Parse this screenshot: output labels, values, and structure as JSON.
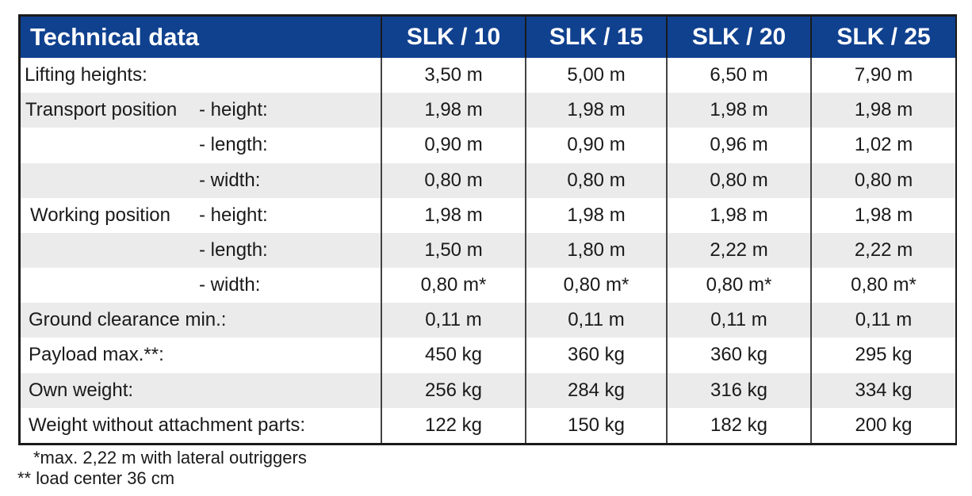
{
  "table": {
    "title": "Technical data",
    "models": [
      "SLK / 10",
      "SLK / 15",
      "SLK / 20",
      "SLK / 25"
    ],
    "rows": [
      {
        "group": "",
        "label": "Lifting heights:",
        "values": [
          "3,50 m",
          "5,00 m",
          "6,50 m",
          "7,90 m"
        ]
      },
      {
        "group": "Transport position",
        "label": "- height:",
        "values": [
          "1,98 m",
          "1,98 m",
          "1,98 m",
          "1,98 m"
        ]
      },
      {
        "group": "",
        "label": "- length:",
        "values": [
          "0,90 m",
          "0,90 m",
          "0,96 m",
          "1,02 m"
        ]
      },
      {
        "group": "",
        "label": "- width:",
        "values": [
          "0,80 m",
          "0,80 m",
          "0,80 m",
          "0,80 m"
        ]
      },
      {
        "group": "Working position",
        "label": "- height:",
        "values": [
          "1,98 m",
          "1,98 m",
          "1,98 m",
          "1,98 m"
        ]
      },
      {
        "group": "",
        "label": "- length:",
        "values": [
          "1,50 m",
          "1,80 m",
          "2,22 m",
          "2,22 m"
        ]
      },
      {
        "group": "",
        "label": "- width:",
        "values": [
          "0,80 m*",
          "0,80 m*",
          "0,80 m*",
          "0,80 m*"
        ]
      },
      {
        "group": "",
        "label": "Ground clearance min.:",
        "values": [
          "0,11 m",
          "0,11 m",
          "0,11 m",
          "0,11 m"
        ]
      },
      {
        "group": "",
        "label": "Payload max.**:",
        "values": [
          "450 kg",
          "360 kg",
          "360 kg",
          "295 kg"
        ]
      },
      {
        "group": "",
        "label": "Own weight:",
        "values": [
          "256 kg",
          "284 kg",
          "316 kg",
          "334 kg"
        ]
      },
      {
        "group": "",
        "label": "Weight without attachment parts:",
        "values": [
          "122 kg",
          "150 kg",
          "182 kg",
          "200 kg"
        ]
      }
    ]
  },
  "footnotes": [
    "*max. 2,22 m with lateral outriggers",
    "** load center 36 cm"
  ],
  "colors": {
    "header_bg": "#10418f",
    "header_text": "#ffffff",
    "stripe": "#ebebeb",
    "border": "#1a1a1a"
  }
}
